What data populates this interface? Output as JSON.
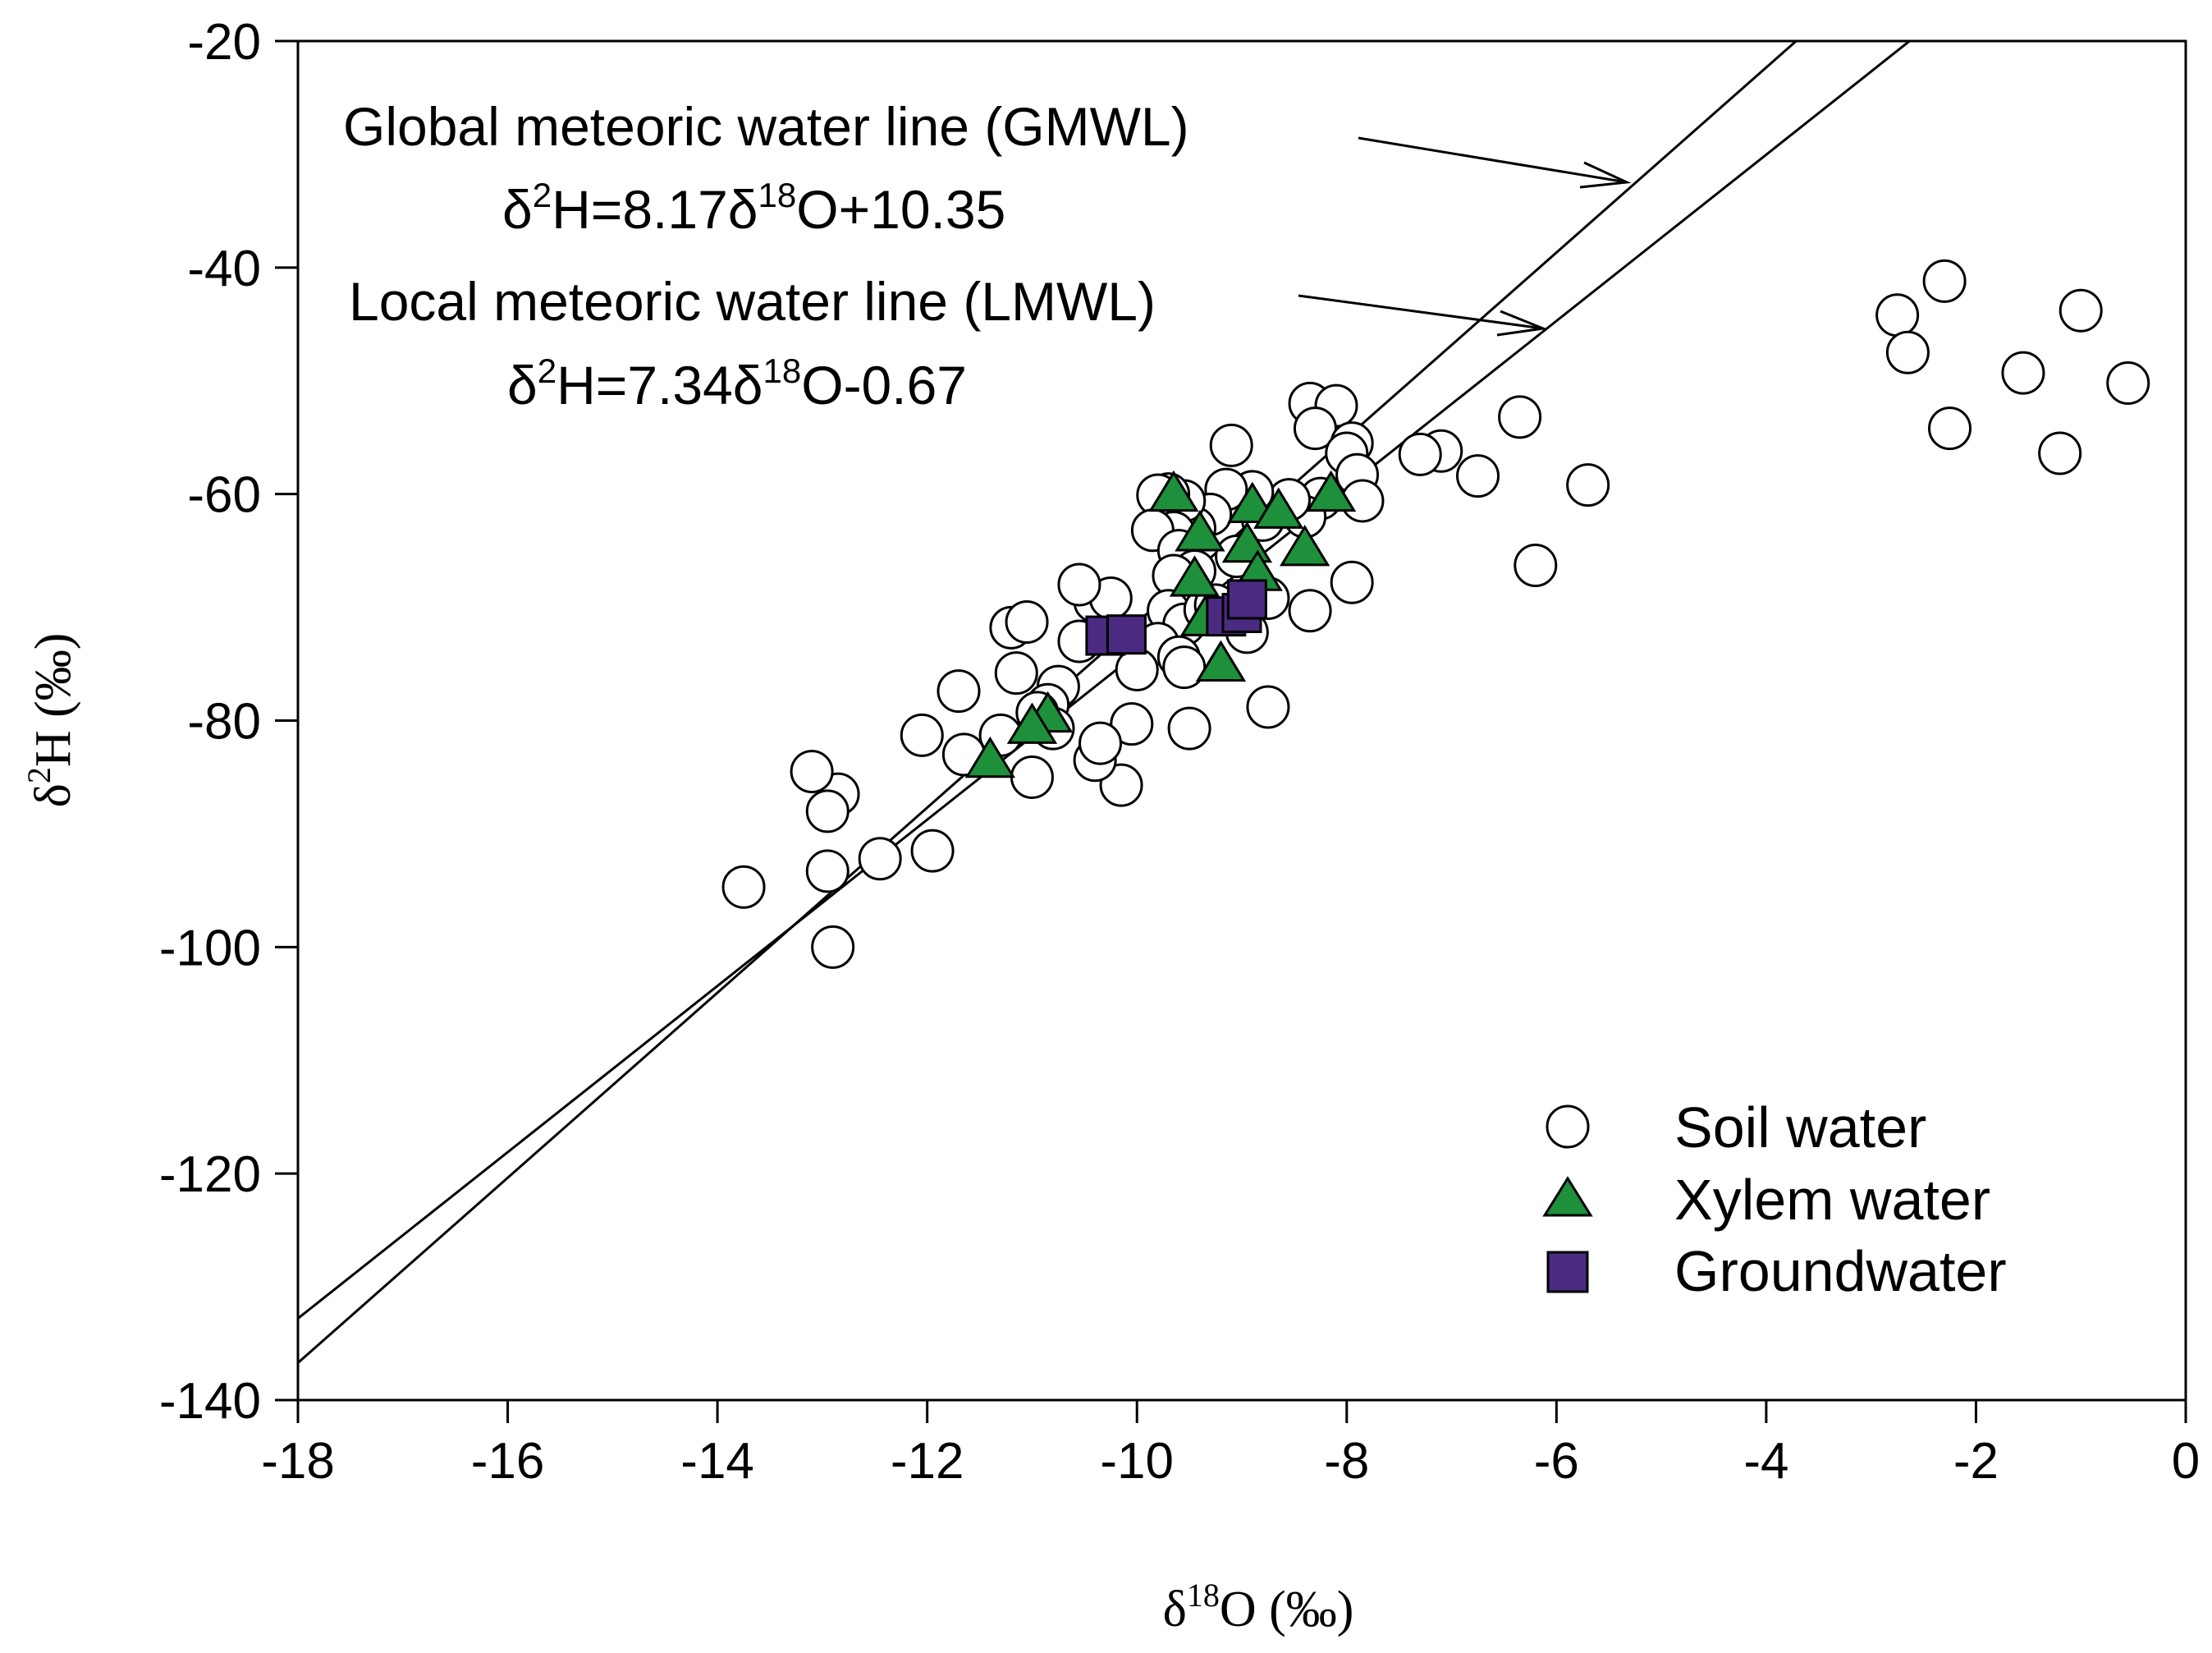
{
  "chart_data": {
    "type": "scatter",
    "title": "",
    "xlabel": {
      "pre": "δ",
      "sup": "18",
      "post": "O (‰)"
    },
    "ylabel": {
      "pre": "δ",
      "sup": "2",
      "post": "H (‰)"
    },
    "xlim": [
      -18,
      0
    ],
    "ylim": [
      -140,
      -20
    ],
    "xticks": [
      -18,
      -16,
      -14,
      -12,
      -10,
      -8,
      -6,
      -4,
      -2,
      0
    ],
    "yticks": [
      -140,
      -120,
      -100,
      -80,
      -60,
      -40,
      -20
    ],
    "grid": false,
    "legend_position": "bottom-right",
    "lines": [
      {
        "name": "GMWL",
        "slope": 8.17,
        "intercept": 10.35,
        "label_title": "Global meteoric water line (GMWL)",
        "equation": {
          "a": "δ",
          "b": "2",
          "c": "H=8.17δ",
          "d": "18",
          "e": "O+10.35"
        }
      },
      {
        "name": "LMWL",
        "slope": 7.34,
        "intercept": -0.67,
        "label_title": "Local meteoric water line (LMWL)",
        "equation": {
          "a": "δ",
          "b": "2",
          "c": "H=7.34δ",
          "d": "18",
          "e": "O-0.67"
        }
      }
    ],
    "series": [
      {
        "name": "Soil water",
        "marker": "circle",
        "color": "#ffffff",
        "points": [
          [
            -2.3,
            -41.2
          ],
          [
            -2.75,
            -44.2
          ],
          [
            -2.65,
            -47.5
          ],
          [
            -1.0,
            -43.8
          ],
          [
            -1.55,
            -49.3
          ],
          [
            -0.55,
            -50.2
          ],
          [
            -2.25,
            -54.2
          ],
          [
            -1.2,
            -56.4
          ],
          [
            -5.7,
            -59.2
          ],
          [
            -6.35,
            -53.2
          ],
          [
            -6.75,
            -58.4
          ],
          [
            -6.2,
            -66.3
          ],
          [
            -7.1,
            -56.2
          ],
          [
            -7.3,
            -56.5
          ],
          [
            -8.35,
            -52.0
          ],
          [
            -8.1,
            -52.2
          ],
          [
            -8.3,
            -54.2
          ],
          [
            -7.95,
            -55.5
          ],
          [
            -8.0,
            -56.4
          ],
          [
            -7.9,
            -58.3
          ],
          [
            -7.85,
            -60.6
          ],
          [
            -8.25,
            -60.4
          ],
          [
            -8.4,
            -62.0
          ],
          [
            -7.95,
            -67.8
          ],
          [
            -8.35,
            -70.3
          ],
          [
            -8.75,
            -69.2
          ],
          [
            -8.55,
            -60.5
          ],
          [
            -8.8,
            -62.3
          ],
          [
            -8.9,
            -59.8
          ],
          [
            -9.1,
            -55.7
          ],
          [
            -9.15,
            -59.6
          ],
          [
            -9.3,
            -61.8
          ],
          [
            -9.45,
            -63.0
          ],
          [
            -9.55,
            -60.6
          ],
          [
            -9.7,
            -60.0
          ],
          [
            -9.8,
            -60.1
          ],
          [
            -9.65,
            -63.4
          ],
          [
            -9.85,
            -63.2
          ],
          [
            -9.6,
            -65.0
          ],
          [
            -9.45,
            -66.8
          ],
          [
            -9.65,
            -67.2
          ],
          [
            -9.7,
            -70.3
          ],
          [
            -9.55,
            -71.5
          ],
          [
            -9.35,
            -70.2
          ],
          [
            -9.8,
            -73.2
          ],
          [
            -9.6,
            -74.4
          ],
          [
            -9.55,
            -75.3
          ],
          [
            -9.5,
            -80.7
          ],
          [
            -8.75,
            -78.8
          ],
          [
            -9.25,
            -69.8
          ],
          [
            -9.05,
            -65.5
          ],
          [
            -8.95,
            -72.2
          ],
          [
            -10.0,
            -75.5
          ],
          [
            -10.05,
            -80.3
          ],
          [
            -10.15,
            -85.7
          ],
          [
            -10.4,
            -83.5
          ],
          [
            -10.35,
            -82.0
          ],
          [
            -10.55,
            -73.0
          ],
          [
            -10.4,
            -69.5
          ],
          [
            -10.25,
            -69.2
          ],
          [
            -10.55,
            -68.0
          ],
          [
            -10.75,
            -77.0
          ],
          [
            -10.85,
            -78.6
          ],
          [
            -10.95,
            -79.3
          ],
          [
            -10.8,
            -80.7
          ],
          [
            -11.0,
            -85.0
          ],
          [
            -11.15,
            -75.8
          ],
          [
            -11.2,
            -71.8
          ],
          [
            -11.05,
            -71.3
          ],
          [
            -11.3,
            -81.3
          ],
          [
            -11.65,
            -83.0
          ],
          [
            -11.7,
            -77.4
          ],
          [
            -12.05,
            -81.3
          ],
          [
            -11.95,
            -91.5
          ],
          [
            -12.45,
            -92.2
          ],
          [
            -12.85,
            -86.5
          ],
          [
            -12.95,
            -88.0
          ],
          [
            -13.1,
            -84.5
          ],
          [
            -12.95,
            -93.3
          ],
          [
            -12.9,
            -100.0
          ],
          [
            -13.75,
            -94.7
          ]
        ]
      },
      {
        "name": "Xylem water",
        "marker": "triangle",
        "color": "#1e8f3a",
        "points": [
          [
            -9.65,
            -60.0
          ],
          [
            -9.4,
            -63.5
          ],
          [
            -8.9,
            -61.0
          ],
          [
            -8.65,
            -61.5
          ],
          [
            -8.15,
            -60.0
          ],
          [
            -8.95,
            -64.5
          ],
          [
            -8.4,
            -64.8
          ],
          [
            -9.45,
            -67.5
          ],
          [
            -8.85,
            -67.0
          ],
          [
            -9.35,
            -71.0
          ],
          [
            -9.2,
            -75.0
          ],
          [
            -10.85,
            -79.5
          ],
          [
            -11.0,
            -80.5
          ],
          [
            -11.4,
            -83.5
          ]
        ]
      },
      {
        "name": "Groundwater",
        "marker": "square",
        "color": "#4b2a82",
        "points": [
          [
            -10.3,
            -72.5
          ],
          [
            -10.1,
            -72.4
          ],
          [
            -9.15,
            -70.8
          ],
          [
            -9.0,
            -70.5
          ],
          [
            -8.95,
            -69.3
          ]
        ]
      }
    ]
  }
}
